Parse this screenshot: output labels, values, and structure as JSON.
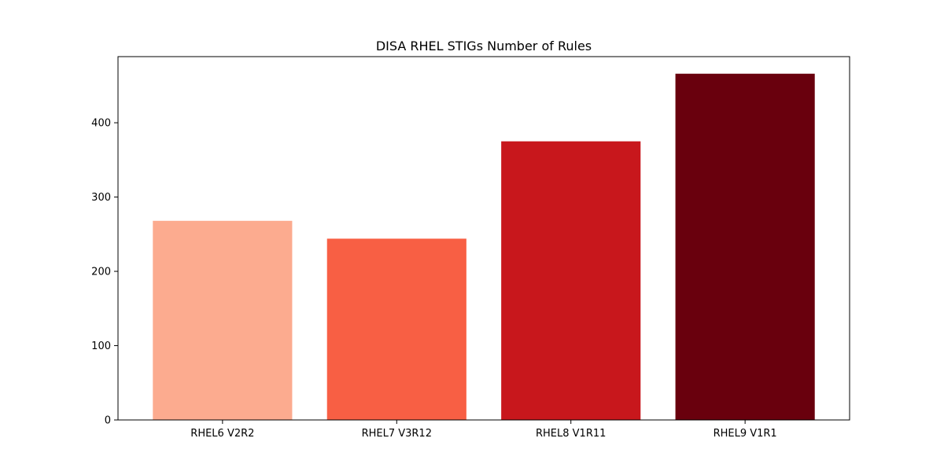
{
  "chart_data": {
    "type": "bar",
    "title": "DISA RHEL STIGs Number of Rules",
    "xlabel": "",
    "ylabel": "",
    "categories": [
      "RHEL6 V2R2",
      "RHEL7 V3R12",
      "RHEL8 V1R11",
      "RHEL9 V1R1"
    ],
    "values": [
      268,
      244,
      375,
      466
    ],
    "colors": [
      "#fcab8f",
      "#f85f44",
      "#c8171c",
      "#69000d"
    ],
    "ylim": [
      0,
      489
    ],
    "yticks": [
      0,
      100,
      200,
      300,
      400
    ],
    "ytick_labels": [
      "0",
      "100",
      "200",
      "300",
      "400"
    ],
    "grid": false,
    "legend": "none"
  }
}
